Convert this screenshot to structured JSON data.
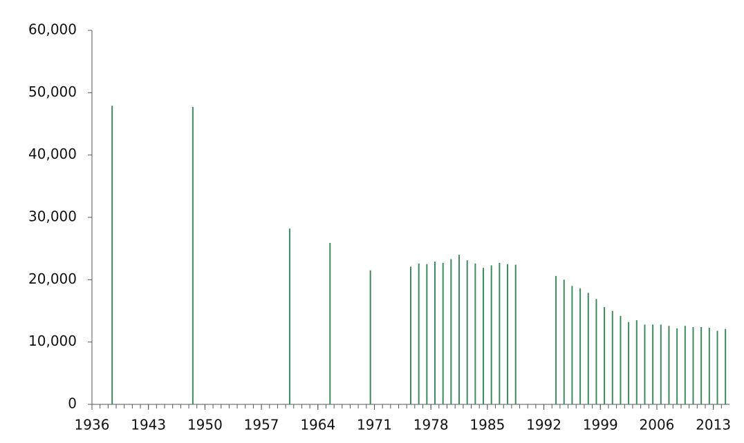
{
  "chart_data": {
    "type": "bar",
    "x": [
      1938,
      1948,
      1960,
      1965,
      1970,
      1975,
      1976,
      1977,
      1978,
      1979,
      1980,
      1981,
      1982,
      1983,
      1984,
      1985,
      1986,
      1987,
      1988,
      1993,
      1994,
      1995,
      1996,
      1997,
      1998,
      1999,
      2000,
      2001,
      2002,
      2003,
      2004,
      2005,
      2006,
      2007,
      2008,
      2009,
      2010,
      2011,
      2012,
      2013,
      2014
    ],
    "values": [
      47900,
      47700,
      28200,
      25900,
      21500,
      22100,
      22600,
      22500,
      22900,
      22700,
      23300,
      24000,
      23100,
      22600,
      21900,
      22300,
      22700,
      22500,
      22400,
      20600,
      20000,
      19000,
      18600,
      17900,
      16900,
      15600,
      15000,
      14200,
      13200,
      13500,
      12800,
      12800,
      12800,
      12600,
      12200,
      12600,
      12400,
      12400,
      12300,
      11800,
      12100
    ],
    "color": "#3d8a5e",
    "xlim": [
      1936,
      2015
    ],
    "xticks": [
      1936,
      1943,
      1950,
      1957,
      1964,
      1971,
      1978,
      1985,
      1992,
      1999,
      2006,
      2013
    ],
    "ylim": [
      0,
      60000
    ],
    "yticks": [
      0,
      {
        "value": 10000,
        "label": "10,000"
      },
      {
        "value": 20000,
        "label": "20,000"
      },
      {
        "value": 30000,
        "label": "30,000"
      },
      {
        "value": 40000,
        "label": "40,000"
      },
      {
        "value": 50000,
        "label": "50,000"
      },
      {
        "value": 60000,
        "label": "60,000"
      }
    ],
    "grid": false
  }
}
